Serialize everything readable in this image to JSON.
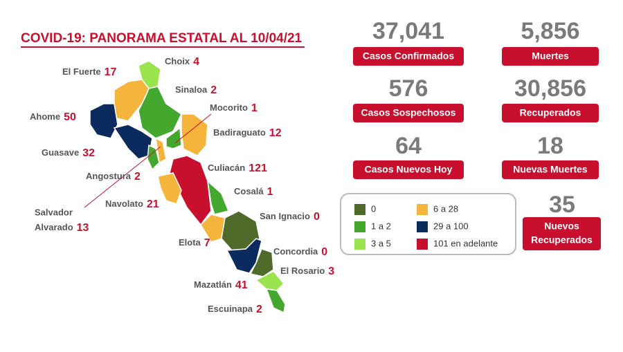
{
  "header": {
    "title": "COVID-19: PANORAMA ESTATAL AL 10/04/21"
  },
  "stats": [
    {
      "value": "37,041",
      "label": "Casos Confirmados"
    },
    {
      "value": "5,856",
      "label": "Muertes"
    },
    {
      "value": "576",
      "label": "Casos Sospechosos"
    },
    {
      "value": "30,856",
      "label": "Recuperados"
    },
    {
      "value": "64",
      "label": "Casos Nuevos Hoy"
    },
    {
      "value": "18",
      "label": "Nuevas Muertes"
    },
    {
      "value": "35",
      "label": [
        "Nuevos",
        "Recuperados"
      ]
    }
  ],
  "legend": [
    "0",
    "1 a 2",
    "3 a 5",
    "6 a 28",
    "29 a 100",
    "101 en adelante"
  ],
  "municipalities": [
    {
      "name": "Choix",
      "cases": 4
    },
    {
      "name": "El Fuerte",
      "cases": 17
    },
    {
      "name": "Sinaloa",
      "cases": 2
    },
    {
      "name": "Mocorito",
      "cases": 1
    },
    {
      "name": "Ahome",
      "cases": 50
    },
    {
      "name": "Badiraguato",
      "cases": 12
    },
    {
      "name": "Guasave",
      "cases": 32
    },
    {
      "name": "Angostura",
      "cases": 2
    },
    {
      "name": "Culiacán",
      "cases": 121
    },
    {
      "name": "Cosalá",
      "cases": 1
    },
    {
      "name": [
        "Salvador",
        "Alvarado"
      ],
      "cases": 13
    },
    {
      "name": "Navolato",
      "cases": 21
    },
    {
      "name": "San Ignacio",
      "cases": 0
    },
    {
      "name": "Elota",
      "cases": 7
    },
    {
      "name": "Concordia",
      "cases": 0
    },
    {
      "name": "El Rosario",
      "cases": 3
    },
    {
      "name": "Mazatlán",
      "cases": 41
    },
    {
      "name": "Escuinapa",
      "cases": 2
    }
  ]
}
